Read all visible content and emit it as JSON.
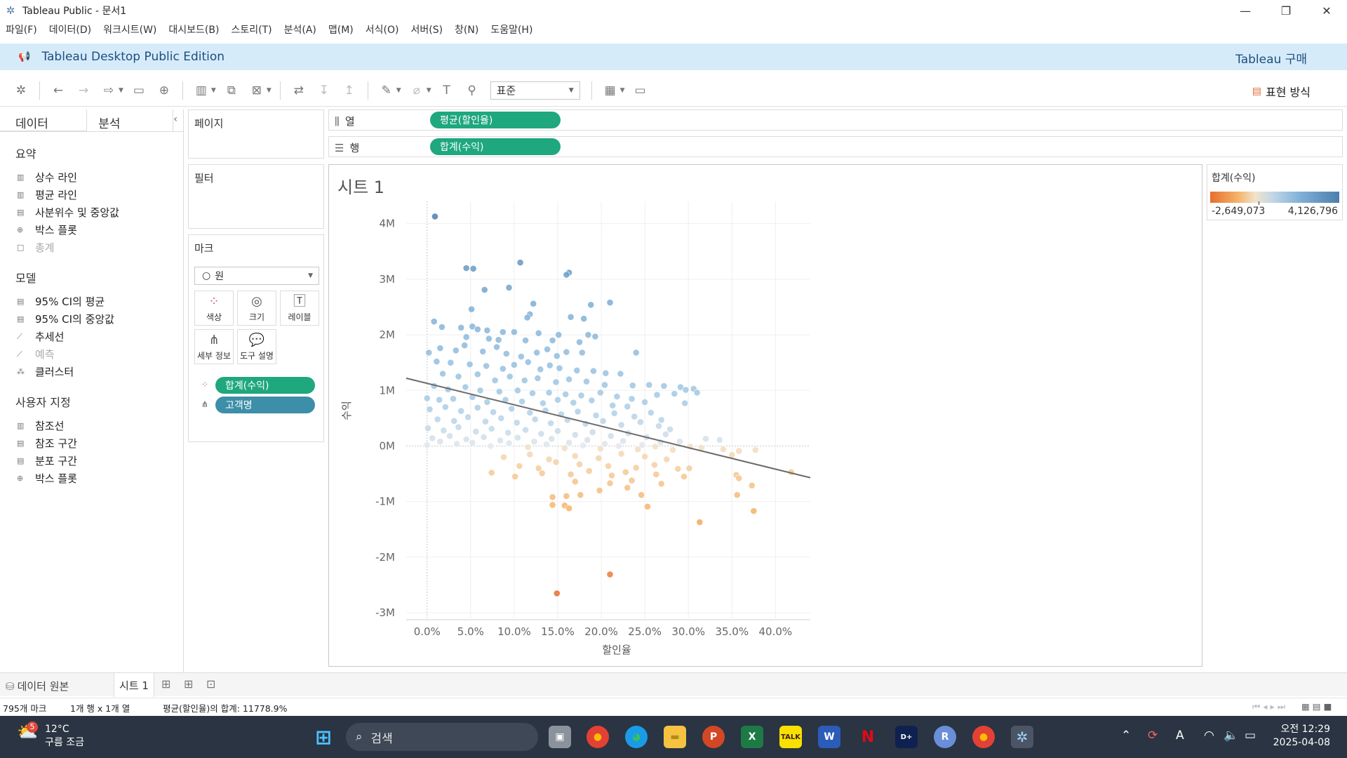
{
  "window": {
    "title": "Tableau Public - 문서1"
  },
  "menu": [
    "파일(F)",
    "데이터(D)",
    "워크시트(W)",
    "대시보드(B)",
    "스토리(T)",
    "분석(A)",
    "맵(M)",
    "서식(O)",
    "서버(S)",
    "창(N)",
    "도움말(H)"
  ],
  "banner": {
    "edition": "Tableau Desktop Public Edition",
    "buy": "Tableau 구매"
  },
  "toolbar": {
    "fit_select": "표준",
    "show_me": "표현 방식"
  },
  "left_panel": {
    "tab_data": "데이터",
    "tab_analysis": "분석",
    "summary_header": "요약",
    "summary_items": [
      {
        "label": "상수 라인",
        "enabled": true
      },
      {
        "label": "평균 라인",
        "enabled": true
      },
      {
        "label": "사분위수 및 중앙값",
        "enabled": true
      },
      {
        "label": "박스 플롯",
        "enabled": true
      },
      {
        "label": "총계",
        "enabled": false
      }
    ],
    "model_header": "모델",
    "model_items": [
      {
        "label": "95% CI의 평균",
        "enabled": true
      },
      {
        "label": "95% CI의 중앙값",
        "enabled": true
      },
      {
        "label": "추세선",
        "enabled": true
      },
      {
        "label": "예측",
        "enabled": false
      },
      {
        "label": "클러스터",
        "enabled": true
      }
    ],
    "custom_header": "사용자 지정",
    "custom_items": [
      {
        "label": "참조선",
        "enabled": true
      },
      {
        "label": "참조 구간",
        "enabled": true
      },
      {
        "label": "분포 구간",
        "enabled": true
      },
      {
        "label": "박스 플롯",
        "enabled": true
      }
    ]
  },
  "cards": {
    "pages": "페이지",
    "filters": "필터",
    "marks": "마크",
    "mark_type": "원",
    "mark_buttons": [
      "색상",
      "크기",
      "레이블",
      "세부 정보",
      "도구 설명"
    ],
    "mark_pills": [
      "합계(수익)",
      "고객명"
    ]
  },
  "shelves": {
    "columns_label": "열",
    "columns_pill": "평균(할인율)",
    "rows_label": "행",
    "rows_pill": "합계(수익)"
  },
  "sheet": {
    "title": "시트 1"
  },
  "legend": {
    "title": "합계(수익)",
    "min": "-2,649,073",
    "max": "4,126,796"
  },
  "chart_data": {
    "type": "scatter",
    "xlabel": "할인율",
    "ylabel": "수익",
    "x_ticks": [
      "0.0%",
      "5.0%",
      "10.0%",
      "15.0%",
      "20.0%",
      "25.0%",
      "30.0%",
      "35.0%",
      "40.0%"
    ],
    "y_ticks": [
      "4M",
      "3M",
      "2M",
      "1M",
      "0M",
      "-1M",
      "-2M",
      "-3M"
    ],
    "xlim": [
      -0.024,
      0.44
    ],
    "ylim": [
      -3.1,
      4.4
    ],
    "trendline": [
      [
        -0.024,
        1.22
      ],
      [
        0.44,
        -0.57
      ]
    ],
    "color_range": [
      -2.649073,
      4.126796
    ],
    "points": [
      [
        0.009,
        4.13
      ],
      [
        0.045,
        3.2
      ],
      [
        0.053,
        3.19
      ],
      [
        0.107,
        3.3
      ],
      [
        0.163,
        3.12
      ],
      [
        0.16,
        3.08
      ],
      [
        0.066,
        2.81
      ],
      [
        0.094,
        2.85
      ],
      [
        0.21,
        2.58
      ],
      [
        0.122,
        2.56
      ],
      [
        0.188,
        2.54
      ],
      [
        0.051,
        2.46
      ],
      [
        0.118,
        2.37
      ],
      [
        0.115,
        2.31
      ],
      [
        0.165,
        2.32
      ],
      [
        0.008,
        2.24
      ],
      [
        0.039,
        2.13
      ],
      [
        0.18,
        2.29
      ],
      [
        0.017,
        2.14
      ],
      [
        0.052,
        2.15
      ],
      [
        0.058,
        2.1
      ],
      [
        0.069,
        2.08
      ],
      [
        0.087,
        2.05
      ],
      [
        0.1,
        2.05
      ],
      [
        0.128,
        2.03
      ],
      [
        0.151,
        2.0
      ],
      [
        0.185,
        2.0
      ],
      [
        0.193,
        1.97
      ],
      [
        0.045,
        1.96
      ],
      [
        0.071,
        1.93
      ],
      [
        0.082,
        1.91
      ],
      [
        0.113,
        1.9
      ],
      [
        0.144,
        1.9
      ],
      [
        0.175,
        1.87
      ],
      [
        0.002,
        1.68
      ],
      [
        0.015,
        1.76
      ],
      [
        0.033,
        1.72
      ],
      [
        0.043,
        1.81
      ],
      [
        0.064,
        1.7
      ],
      [
        0.08,
        1.78
      ],
      [
        0.091,
        1.66
      ],
      [
        0.108,
        1.61
      ],
      [
        0.126,
        1.68
      ],
      [
        0.138,
        1.74
      ],
      [
        0.149,
        1.62
      ],
      [
        0.16,
        1.69
      ],
      [
        0.178,
        1.68
      ],
      [
        0.24,
        1.68
      ],
      [
        0.011,
        1.52
      ],
      [
        0.027,
        1.5
      ],
      [
        0.049,
        1.47
      ],
      [
        0.068,
        1.44
      ],
      [
        0.087,
        1.39
      ],
      [
        0.1,
        1.46
      ],
      [
        0.116,
        1.51
      ],
      [
        0.13,
        1.38
      ],
      [
        0.141,
        1.45
      ],
      [
        0.152,
        1.4
      ],
      [
        0.172,
        1.36
      ],
      [
        0.191,
        1.35
      ],
      [
        0.205,
        1.31
      ],
      [
        0.222,
        1.3
      ],
      [
        0.018,
        1.3
      ],
      [
        0.036,
        1.25
      ],
      [
        0.058,
        1.29
      ],
      [
        0.078,
        1.18
      ],
      [
        0.095,
        1.25
      ],
      [
        0.112,
        1.18
      ],
      [
        0.127,
        1.22
      ],
      [
        0.148,
        1.15
      ],
      [
        0.163,
        1.2
      ],
      [
        0.183,
        1.16
      ],
      [
        0.204,
        1.1
      ],
      [
        0.236,
        1.09
      ],
      [
        0.255,
        1.1
      ],
      [
        0.272,
        1.08
      ],
      [
        0.291,
        1.06
      ],
      [
        0.306,
        1.03
      ],
      [
        0.008,
        1.08
      ],
      [
        0.024,
        1.02
      ],
      [
        0.044,
        1.06
      ],
      [
        0.061,
        1.0
      ],
      [
        0.083,
        0.98
      ],
      [
        0.104,
        1.0
      ],
      [
        0.121,
        0.95
      ],
      [
        0.14,
        0.96
      ],
      [
        0.159,
        0.93
      ],
      [
        0.177,
        0.91
      ],
      [
        0.199,
        0.96
      ],
      [
        0.218,
        0.89
      ],
      [
        0.235,
        0.85
      ],
      [
        0.264,
        0.92
      ],
      [
        0.284,
        0.94
      ],
      [
        0.297,
        1.01
      ],
      [
        0.31,
        0.96
      ],
      [
        0.0,
        0.86
      ],
      [
        0.014,
        0.83
      ],
      [
        0.03,
        0.85
      ],
      [
        0.052,
        0.88
      ],
      [
        0.069,
        0.79
      ],
      [
        0.09,
        0.83
      ],
      [
        0.109,
        0.8
      ],
      [
        0.133,
        0.77
      ],
      [
        0.15,
        0.83
      ],
      [
        0.168,
        0.78
      ],
      [
        0.189,
        0.82
      ],
      [
        0.213,
        0.73
      ],
      [
        0.23,
        0.71
      ],
      [
        0.25,
        0.79
      ],
      [
        0.296,
        0.77
      ],
      [
        0.003,
        0.66
      ],
      [
        0.021,
        0.7
      ],
      [
        0.039,
        0.63
      ],
      [
        0.058,
        0.69
      ],
      [
        0.076,
        0.61
      ],
      [
        0.097,
        0.67
      ],
      [
        0.118,
        0.6
      ],
      [
        0.136,
        0.64
      ],
      [
        0.154,
        0.57
      ],
      [
        0.173,
        0.62
      ],
      [
        0.194,
        0.55
      ],
      [
        0.215,
        0.59
      ],
      [
        0.238,
        0.53
      ],
      [
        0.257,
        0.6
      ],
      [
        0.269,
        0.47
      ],
      [
        0.012,
        0.48
      ],
      [
        0.031,
        0.45
      ],
      [
        0.047,
        0.52
      ],
      [
        0.067,
        0.44
      ],
      [
        0.085,
        0.5
      ],
      [
        0.103,
        0.42
      ],
      [
        0.124,
        0.48
      ],
      [
        0.142,
        0.41
      ],
      [
        0.161,
        0.47
      ],
      [
        0.182,
        0.4
      ],
      [
        0.202,
        0.45
      ],
      [
        0.223,
        0.38
      ],
      [
        0.245,
        0.43
      ],
      [
        0.266,
        0.36
      ],
      [
        0.279,
        0.3
      ],
      [
        0.001,
        0.32
      ],
      [
        0.019,
        0.28
      ],
      [
        0.036,
        0.34
      ],
      [
        0.056,
        0.26
      ],
      [
        0.074,
        0.31
      ],
      [
        0.093,
        0.24
      ],
      [
        0.113,
        0.29
      ],
      [
        0.131,
        0.22
      ],
      [
        0.15,
        0.27
      ],
      [
        0.17,
        0.2
      ],
      [
        0.19,
        0.25
      ],
      [
        0.211,
        0.18
      ],
      [
        0.231,
        0.23
      ],
      [
        0.252,
        0.16
      ],
      [
        0.274,
        0.21
      ],
      [
        0.006,
        0.14
      ],
      [
        0.026,
        0.18
      ],
      [
        0.045,
        0.12
      ],
      [
        0.065,
        0.16
      ],
      [
        0.084,
        0.1
      ],
      [
        0.104,
        0.15
      ],
      [
        0.123,
        0.08
      ],
      [
        0.143,
        0.13
      ],
      [
        0.163,
        0.06
      ],
      [
        0.184,
        0.11
      ],
      [
        0.204,
        0.04
      ],
      [
        0.225,
        0.09
      ],
      [
        0.247,
        0.02
      ],
      [
        0.268,
        0.07
      ],
      [
        0.29,
        0.08
      ],
      [
        0.32,
        0.13
      ],
      [
        0.336,
        0.11
      ],
      [
        0.0,
        0.02
      ],
      [
        0.015,
        0.08
      ],
      [
        0.034,
        0.04
      ],
      [
        0.052,
        0.06
      ],
      [
        0.073,
        0.0
      ],
      [
        0.094,
        0.05
      ],
      [
        0.116,
        -0.02
      ],
      [
        0.137,
        0.03
      ],
      [
        0.158,
        -0.04
      ],
      [
        0.179,
        0.01
      ],
      [
        0.199,
        -0.05
      ],
      [
        0.22,
        0.0
      ],
      [
        0.242,
        -0.06
      ],
      [
        0.262,
        -0.01
      ],
      [
        0.282,
        -0.07
      ],
      [
        0.302,
        -0.01
      ],
      [
        0.315,
        -0.03
      ],
      [
        0.34,
        -0.06
      ],
      [
        0.358,
        -0.09
      ],
      [
        0.377,
        -0.07
      ],
      [
        0.088,
        -0.2
      ],
      [
        0.118,
        -0.15
      ],
      [
        0.14,
        -0.24
      ],
      [
        0.17,
        -0.18
      ],
      [
        0.197,
        -0.22
      ],
      [
        0.223,
        -0.14
      ],
      [
        0.25,
        -0.19
      ],
      [
        0.275,
        -0.24
      ],
      [
        0.35,
        -0.16
      ],
      [
        0.106,
        -0.36
      ],
      [
        0.128,
        -0.4
      ],
      [
        0.148,
        -0.29
      ],
      [
        0.175,
        -0.33
      ],
      [
        0.208,
        -0.36
      ],
      [
        0.24,
        -0.39
      ],
      [
        0.261,
        -0.34
      ],
      [
        0.288,
        -0.41
      ],
      [
        0.301,
        -0.4
      ],
      [
        0.074,
        -0.48
      ],
      [
        0.101,
        -0.55
      ],
      [
        0.132,
        -0.49
      ],
      [
        0.165,
        -0.51
      ],
      [
        0.186,
        -0.45
      ],
      [
        0.212,
        -0.53
      ],
      [
        0.228,
        -0.47
      ],
      [
        0.263,
        -0.51
      ],
      [
        0.295,
        -0.55
      ],
      [
        0.355,
        -0.52
      ],
      [
        0.17,
        -0.64
      ],
      [
        0.21,
        -0.67
      ],
      [
        0.235,
        -0.62
      ],
      [
        0.269,
        -0.68
      ],
      [
        0.358,
        -0.58
      ],
      [
        0.373,
        -0.71
      ],
      [
        0.418,
        -0.47
      ],
      [
        0.198,
        -0.8
      ],
      [
        0.23,
        -0.75
      ],
      [
        0.246,
        -0.88
      ],
      [
        0.16,
        -0.9
      ],
      [
        0.176,
        -0.88
      ],
      [
        0.356,
        -0.88
      ],
      [
        0.144,
        -0.92
      ],
      [
        0.144,
        -1.06
      ],
      [
        0.158,
        -1.07
      ],
      [
        0.163,
        -1.12
      ],
      [
        0.253,
        -1.09
      ],
      [
        0.375,
        -1.17
      ],
      [
        0.313,
        -1.37
      ],
      [
        0.21,
        -2.31
      ],
      [
        0.149,
        -2.65
      ]
    ]
  },
  "bottom": {
    "data_source": "데이터 원본",
    "sheet_tab": "시트 1"
  },
  "status": {
    "marks": "795개 마크",
    "dims": "1개 행 x 1개 열",
    "sum": "평균(할인율)의 합계: 11778.9%"
  },
  "taskbar": {
    "search": "검색",
    "weather_temp": "12°C",
    "weather_desc": "구름 조금",
    "weather_badge": "5",
    "time": "오전 12:29",
    "date": "2025-04-08"
  }
}
